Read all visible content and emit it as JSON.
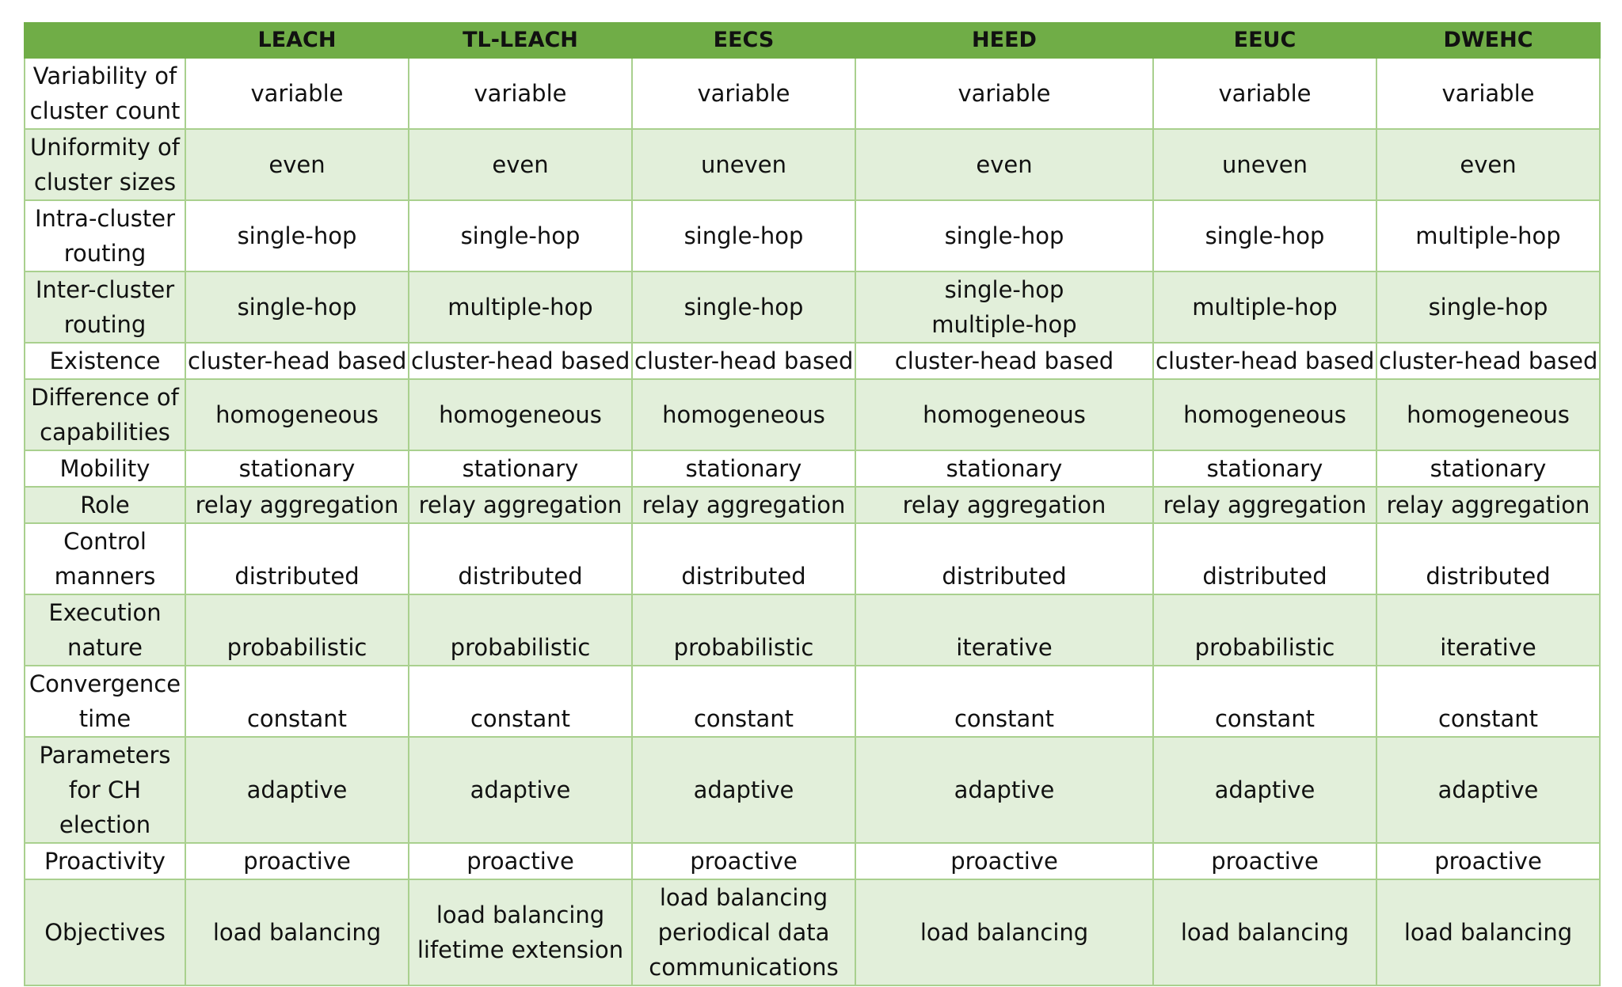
{
  "columns": [
    "",
    "LEACH",
    "TL-LEACH",
    "EECS",
    "HEED",
    "EEUC",
    "DWEHC"
  ],
  "rows": [
    {
      "label": [
        "Variability of",
        "cluster count"
      ],
      "valign": "mid",
      "cells": [
        [
          "variable"
        ],
        [
          "variable"
        ],
        [
          "variable"
        ],
        [
          "variable"
        ],
        [
          "variable"
        ],
        [
          "variable"
        ]
      ]
    },
    {
      "label": [
        "Uniformity of",
        "cluster sizes"
      ],
      "valign": "mid",
      "cells": [
        [
          "even"
        ],
        [
          "even"
        ],
        [
          "uneven"
        ],
        [
          "even"
        ],
        [
          "uneven"
        ],
        [
          "even"
        ]
      ]
    },
    {
      "label": [
        "Intra-cluster",
        "routing"
      ],
      "valign": "mid",
      "cells": [
        [
          "single-hop"
        ],
        [
          "single-hop"
        ],
        [
          "single-hop"
        ],
        [
          "single-hop"
        ],
        [
          "single-hop"
        ],
        [
          "multiple-hop"
        ]
      ]
    },
    {
      "label": [
        "Inter-cluster",
        "routing"
      ],
      "valign": "mid",
      "cells": [
        [
          "single-hop"
        ],
        [
          "multiple-hop"
        ],
        [
          "single-hop"
        ],
        [
          "single-hop",
          "multiple-hop"
        ],
        [
          "multiple-hop"
        ],
        [
          "single-hop"
        ]
      ]
    },
    {
      "label": [
        "Existence"
      ],
      "valign": "mid",
      "cells": [
        [
          "cluster-head based"
        ],
        [
          "cluster-head based"
        ],
        [
          "cluster-head based"
        ],
        [
          "cluster-head based"
        ],
        [
          "cluster-head based"
        ],
        [
          "cluster-head based"
        ]
      ]
    },
    {
      "label": [
        "Difference of",
        "capabilities"
      ],
      "valign": "mid",
      "cells": [
        [
          "homogeneous"
        ],
        [
          "homogeneous"
        ],
        [
          "homogeneous"
        ],
        [
          "homogeneous"
        ],
        [
          "homogeneous"
        ],
        [
          "homogeneous"
        ]
      ]
    },
    {
      "label": [
        "Mobility"
      ],
      "valign": "mid",
      "cells": [
        [
          "stationary"
        ],
        [
          "stationary"
        ],
        [
          "stationary"
        ],
        [
          "stationary"
        ],
        [
          "stationary"
        ],
        [
          "stationary"
        ]
      ]
    },
    {
      "label": [
        "Role"
      ],
      "valign": "mid",
      "cells": [
        [
          "relay aggregation"
        ],
        [
          "relay aggregation"
        ],
        [
          "relay aggregation"
        ],
        [
          "relay aggregation"
        ],
        [
          "relay aggregation"
        ],
        [
          "relay aggregation"
        ]
      ]
    },
    {
      "label": [
        "Control",
        "manners"
      ],
      "valign": "bot",
      "cells": [
        [
          "distributed"
        ],
        [
          "distributed"
        ],
        [
          "distributed"
        ],
        [
          "distributed"
        ],
        [
          "distributed"
        ],
        [
          "distributed"
        ]
      ]
    },
    {
      "label": [
        "Execution",
        "nature"
      ],
      "valign": "bot",
      "cells": [
        [
          "probabilistic"
        ],
        [
          "probabilistic"
        ],
        [
          "probabilistic"
        ],
        [
          "iterative"
        ],
        [
          "probabilistic"
        ],
        [
          "iterative"
        ]
      ]
    },
    {
      "label": [
        "Convergence",
        "time"
      ],
      "valign": "bot",
      "cells": [
        [
          "constant"
        ],
        [
          "constant"
        ],
        [
          "constant"
        ],
        [
          "constant"
        ],
        [
          "constant"
        ],
        [
          "constant"
        ]
      ]
    },
    {
      "label": [
        "Parameters",
        "for CH",
        "election"
      ],
      "valign": "mid",
      "cells": [
        [
          "adaptive"
        ],
        [
          "adaptive"
        ],
        [
          "adaptive"
        ],
        [
          "adaptive"
        ],
        [
          "adaptive"
        ],
        [
          "adaptive"
        ]
      ]
    },
    {
      "label": [
        "Proactivity"
      ],
      "valign": "mid",
      "cells": [
        [
          "proactive"
        ],
        [
          "proactive"
        ],
        [
          "proactive"
        ],
        [
          "proactive"
        ],
        [
          "proactive"
        ],
        [
          "proactive"
        ]
      ]
    },
    {
      "label": [
        "Objectives"
      ],
      "valign": "mid",
      "cells": [
        [
          "load balancing"
        ],
        [
          "load balancing",
          "lifetime extension"
        ],
        [
          "load balancing",
          "periodical data",
          "communications"
        ],
        [
          "load balancing"
        ],
        [
          "load balancing"
        ],
        [
          "load balancing"
        ]
      ]
    }
  ],
  "colors": {
    "header_bg": "#70ad47",
    "alt_row_bg": "#e2efda",
    "border": "#a9d08e"
  }
}
